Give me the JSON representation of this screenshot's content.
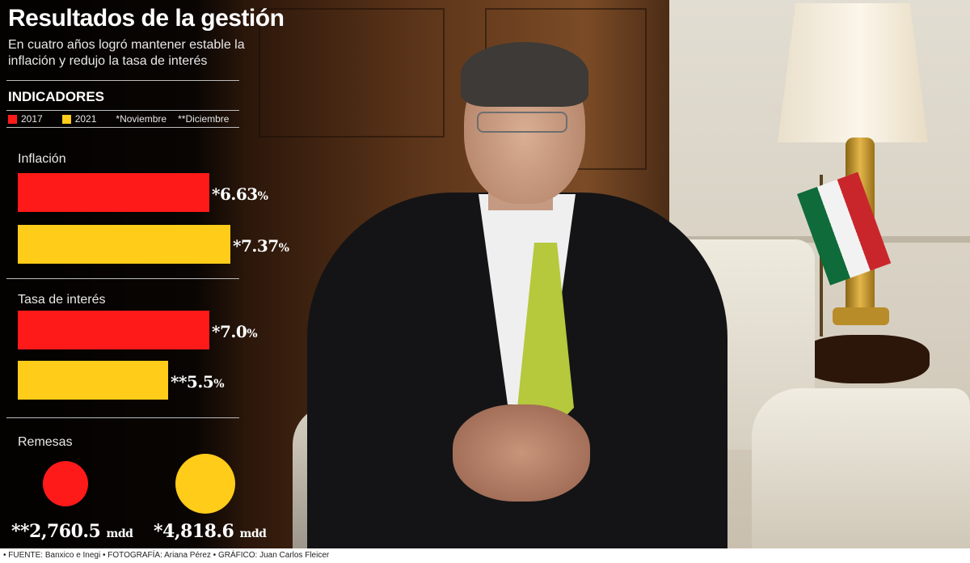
{
  "header": {
    "title": "Resultados de la gestión",
    "subtitle": "En cuatro años logró mantener estable la inflación y redujo la tasa de interés"
  },
  "indicators": {
    "title": "INDICADORES",
    "legend": {
      "year_a": "2017",
      "year_b": "2021",
      "note_a": "*Noviembre",
      "note_b": "**Diciembre"
    }
  },
  "colors": {
    "year_a": "#ff1a1a",
    "year_b": "#ffcc1a"
  },
  "chart_data": {
    "type": "bar",
    "title": "INDICADORES",
    "series_names": [
      "2017",
      "2021"
    ],
    "groups": [
      {
        "label": "Inflación",
        "values": [
          6.63,
          7.37
        ],
        "display": [
          "*6.63",
          "*7.37"
        ],
        "unit": "%"
      },
      {
        "label": "Tasa de interés",
        "values": [
          7.0,
          5.5
        ],
        "display": [
          "*7.0",
          "**5.5"
        ],
        "unit": "%"
      },
      {
        "label": "Remesas",
        "values": [
          2760.5,
          4818.6
        ],
        "display": [
          "**2,760.5",
          "*4,818.6"
        ],
        "unit": "mdd"
      }
    ]
  },
  "footer": {
    "credits": "• FUENTE: Banxico e Inegi • FOTOGRAFÍA: Ariana Pérez • GRÁFICO: Juan Carlos Fleicer"
  }
}
